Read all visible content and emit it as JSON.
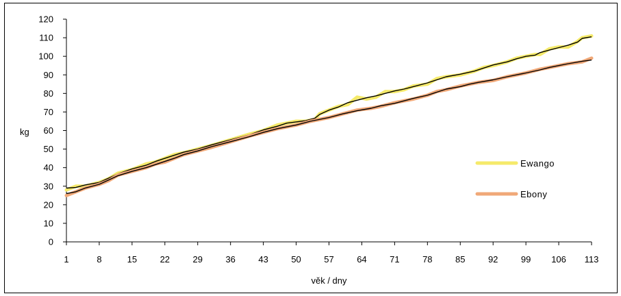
{
  "chart_data": {
    "type": "line",
    "title": "",
    "xlabel": "věk / dny",
    "ylabel": "kg",
    "x_tick_labels": [
      "1",
      "8",
      "15",
      "22",
      "29",
      "36",
      "43",
      "50",
      "57",
      "64",
      "71",
      "78",
      "85",
      "92",
      "99",
      "106",
      "113"
    ],
    "y_tick_labels": [
      "0",
      "10",
      "20",
      "30",
      "40",
      "50",
      "60",
      "70",
      "80",
      "90",
      "100",
      "110",
      "120"
    ],
    "xlim": [
      1,
      113
    ],
    "ylim": [
      0,
      120
    ],
    "grid": false,
    "legend_position": "right",
    "series": [
      {
        "name": "Ewango",
        "color": "#f5ea6a",
        "trend_color": "#000000",
        "x": [
          1,
          3,
          5,
          8,
          10,
          12,
          15,
          18,
          20,
          22,
          24,
          26,
          29,
          32,
          36,
          40,
          43,
          46,
          48,
          50,
          52,
          54,
          55,
          57,
          59,
          61,
          63,
          65,
          67,
          69,
          71,
          73,
          75,
          78,
          80,
          82,
          85,
          88,
          90,
          92,
          95,
          97,
          99,
          101,
          102,
          104,
          106,
          108,
          110,
          111,
          113
        ],
        "y": [
          28,
          30,
          30,
          32,
          34,
          37,
          39,
          42,
          43,
          45,
          47,
          48,
          50,
          52,
          55,
          58,
          60,
          63,
          64,
          65,
          65,
          66,
          69,
          71,
          73,
          74,
          78,
          77,
          78,
          81,
          81,
          82,
          84,
          85,
          88,
          89,
          90,
          92,
          94,
          95,
          97,
          99,
          100,
          101,
          101,
          104,
          105,
          105,
          108,
          110,
          111
        ]
      },
      {
        "name": "Ebony",
        "color": "#f0a878",
        "trend_color": "#000000",
        "x": [
          1,
          3,
          5,
          8,
          10,
          12,
          15,
          18,
          20,
          22,
          24,
          26,
          29,
          32,
          36,
          40,
          43,
          46,
          50,
          53,
          57,
          60,
          63,
          66,
          68,
          71,
          73,
          75,
          78,
          80,
          82,
          85,
          87,
          89,
          92,
          95,
          99,
          102,
          104,
          106,
          108,
          111,
          113
        ],
        "y": [
          25,
          27,
          29,
          31,
          33,
          36,
          38,
          40,
          42,
          43,
          45,
          47,
          49,
          51,
          54,
          57,
          59,
          61,
          63,
          65,
          67,
          69,
          71,
          72,
          73,
          75,
          76,
          77,
          79,
          81,
          82,
          84,
          85,
          86,
          87,
          89,
          91,
          93,
          94,
          95,
          96,
          97,
          99
        ]
      }
    ]
  }
}
